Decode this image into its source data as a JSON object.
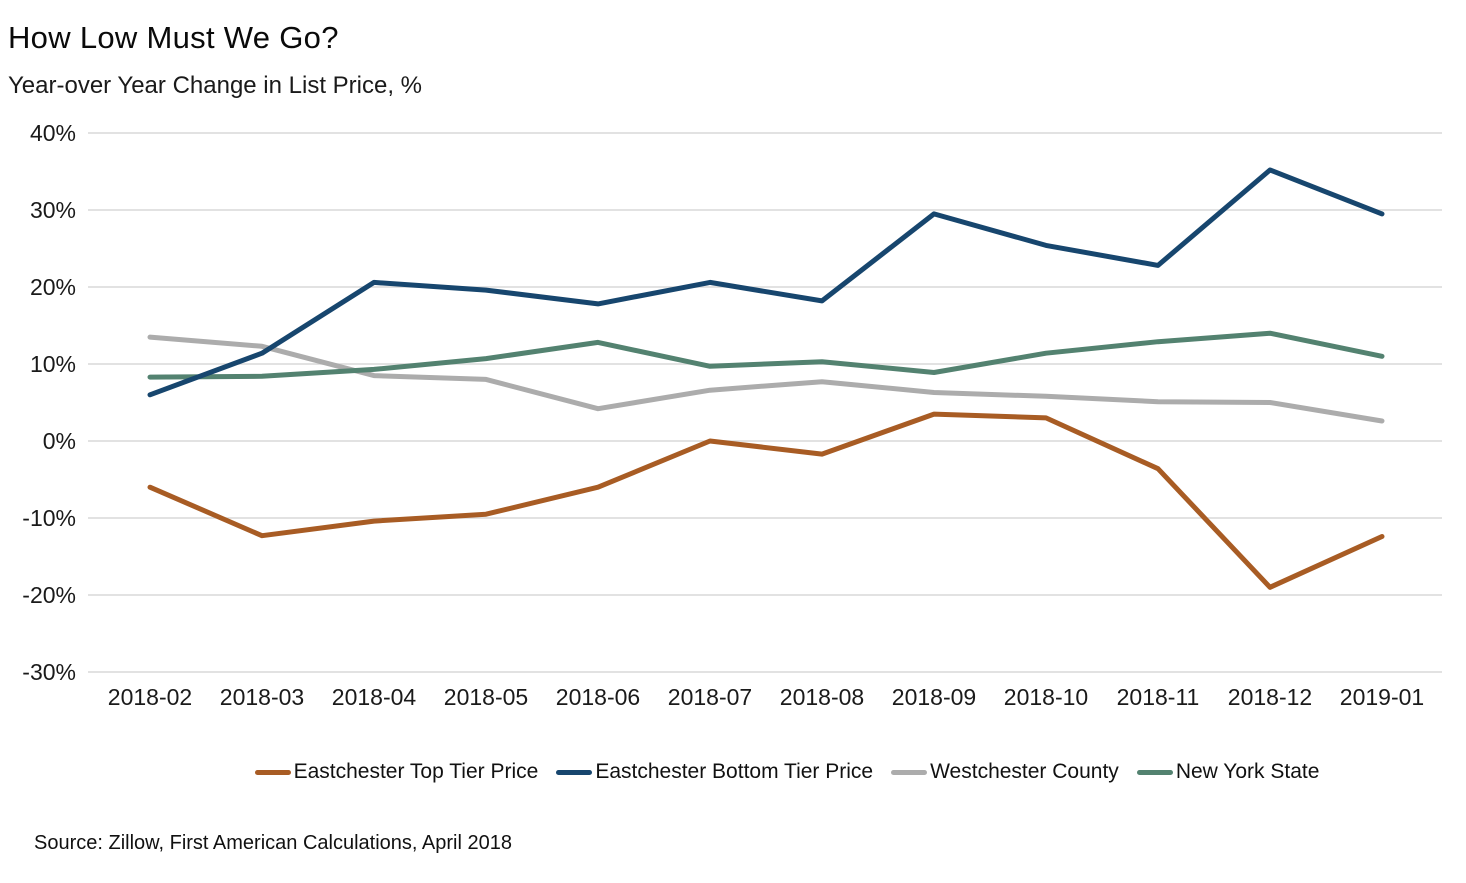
{
  "header": {
    "title": "How Low Must We Go?",
    "subtitle": "Year-over Year Change in List Price, %"
  },
  "footer": {
    "source": "Source: Zillow, First American Calculations, April 2018"
  },
  "chart_data": {
    "type": "line",
    "title": "How Low Must We Go?",
    "subtitle": "Year-over Year Change in List Price, %",
    "categories": [
      "2018-02",
      "2018-03",
      "2018-04",
      "2018-05",
      "2018-06",
      "2018-07",
      "2018-08",
      "2018-09",
      "2018-10",
      "2018-11",
      "2018-12",
      "2019-01"
    ],
    "y_tick_labels": [
      "40%",
      "30%",
      "20%",
      "10%",
      "0%",
      "-10%",
      "-20%",
      "-30%"
    ],
    "y_tick_values": [
      40,
      30,
      20,
      10,
      0,
      -10,
      -20,
      -30
    ],
    "ylim": [
      -30,
      40
    ],
    "grid": true,
    "legend_position": "bottom",
    "gridline_color": "#d9d9d9",
    "series": [
      {
        "name": "Eastchester Top Tier Price",
        "color": "#A85C24",
        "values": [
          -6.0,
          -12.3,
          -10.4,
          -9.5,
          -6.0,
          0.0,
          -1.7,
          3.5,
          3.0,
          -3.6,
          -19.0,
          -12.4
        ]
      },
      {
        "name": "Eastchester Bottom Tier Price",
        "color": "#17466E",
        "values": [
          6.0,
          11.4,
          20.6,
          19.6,
          17.8,
          20.6,
          18.2,
          29.5,
          25.4,
          22.8,
          35.2,
          29.5
        ]
      },
      {
        "name": "Westchester County",
        "color": "#ACACAC",
        "values": [
          13.5,
          12.3,
          8.5,
          8.0,
          4.2,
          6.6,
          7.7,
          6.3,
          5.8,
          5.1,
          5.0,
          2.6
        ]
      },
      {
        "name": "New York State",
        "color": "#538270",
        "values": [
          8.3,
          8.4,
          9.3,
          10.7,
          12.8,
          9.7,
          10.3,
          8.9,
          11.4,
          12.9,
          14.0,
          11.0
        ]
      }
    ]
  }
}
